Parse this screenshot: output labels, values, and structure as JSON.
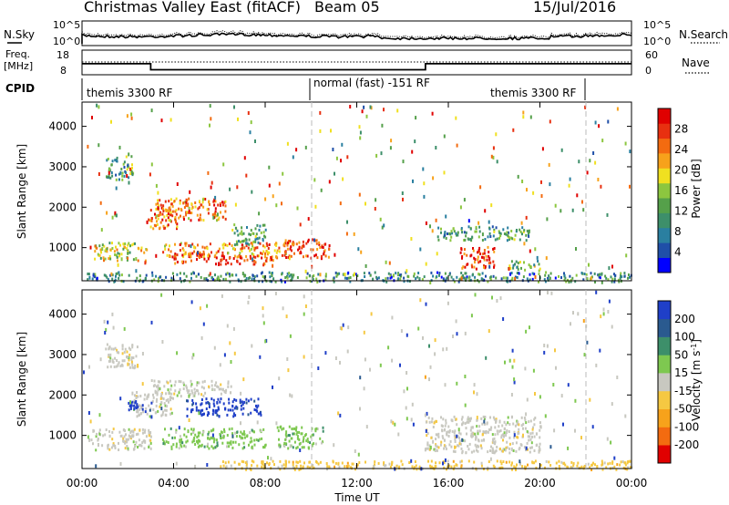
{
  "header": {
    "title": "Christmas Valley East (fitACF)",
    "beam": "Beam 05",
    "date": "15/Jul/2016"
  },
  "top_panel": {
    "left_label": "N.Sky",
    "right_label": "N.Search",
    "left_ticks": [
      "10^5",
      "10^0"
    ],
    "right_ticks": [
      "10^5",
      "10^0"
    ]
  },
  "freq_panel": {
    "left_label_1": "Freq.",
    "left_label_2": "[MHz]",
    "right_label": "Nave",
    "left_ticks": [
      "18",
      "8"
    ],
    "right_ticks": [
      "60",
      "0"
    ]
  },
  "cpid": {
    "label": "CPID",
    "segments": [
      "themis 3300 RF",
      "normal (fast) -151 RF",
      "themis 3300 RF"
    ]
  },
  "chart_data": [
    {
      "type": "heatmap",
      "name": "power",
      "ylabel": "Slant Range [km]",
      "yticks": [
        "1000",
        "2000",
        "3000",
        "4000"
      ],
      "ylim": [
        180,
        4600
      ],
      "xlim": [
        0,
        24
      ],
      "colorbar_label": "Power [dB]",
      "colorbar_ticks": [
        "4",
        "8",
        "12",
        "16",
        "20",
        "24",
        "28"
      ],
      "colorbar_colors": [
        "#0000ff",
        "#1f4fa8",
        "#2a7fa0",
        "#3d8f6a",
        "#55a04a",
        "#8cc63f",
        "#f0e020",
        "#f7a21b",
        "#f36b10",
        "#e83010",
        "#e00000"
      ],
      "regions": [
        {
          "t0": 0.5,
          "t1": 2.8,
          "r0": 700,
          "r1": 1150,
          "level": 0.55
        },
        {
          "t0": 2.8,
          "t1": 4.2,
          "r0": 1500,
          "r1": 2000,
          "level": 0.8
        },
        {
          "t0": 3.2,
          "t1": 6.3,
          "r0": 1700,
          "r1": 2250,
          "level": 0.75
        },
        {
          "t0": 3.5,
          "t1": 9.0,
          "r0": 800,
          "r1": 1150,
          "level": 0.72
        },
        {
          "t0": 4.0,
          "t1": 8.5,
          "r0": 600,
          "r1": 850,
          "level": 0.85
        },
        {
          "t0": 8.8,
          "t1": 10.8,
          "r0": 750,
          "r1": 1250,
          "level": 0.9
        },
        {
          "t0": 6.5,
          "t1": 8.0,
          "r0": 1100,
          "r1": 1600,
          "level": 0.4
        },
        {
          "t0": 15.5,
          "t1": 19.5,
          "r0": 1200,
          "r1": 1550,
          "level": 0.35
        },
        {
          "t0": 16.5,
          "t1": 18.0,
          "r0": 500,
          "r1": 1050,
          "level": 0.88
        },
        {
          "t0": 18.5,
          "t1": 20.0,
          "r0": 450,
          "r1": 700,
          "level": 0.45
        },
        {
          "t0": 1.0,
          "t1": 2.2,
          "r0": 2700,
          "r1": 3300,
          "level": 0.35
        },
        {
          "t0": 0.2,
          "t1": 24.0,
          "r0": 180,
          "r1": 420,
          "level": 0.3
        }
      ]
    },
    {
      "type": "heatmap",
      "name": "velocity",
      "ylabel": "Slant Range [km]",
      "yticks": [
        "1000",
        "2000",
        "3000",
        "4000"
      ],
      "ylim": [
        180,
        4600
      ],
      "xlim": [
        0,
        24
      ],
      "colorbar_label": "Velocity [m s-1]",
      "colorbar_ticks": [
        "200",
        "100",
        "50",
        "15",
        "-15",
        "-50",
        "-100",
        "-200"
      ],
      "colorbar_colors": [
        "#1f3fc8",
        "#2a5a8f",
        "#3d8f6a",
        "#7ec850",
        "#c8c8c0",
        "#f5c842",
        "#f7a21b",
        "#f36b10",
        "#e00000"
      ],
      "regions": [
        {
          "t0": 0.3,
          "t1": 3.0,
          "r0": 650,
          "r1": 1200,
          "cls": 4
        },
        {
          "t0": 2.2,
          "t1": 4.0,
          "r0": 1500,
          "r1": 2100,
          "cls": 4
        },
        {
          "t0": 2.0,
          "t1": 3.0,
          "r0": 1600,
          "r1": 1900,
          "cls": 0
        },
        {
          "t0": 4.5,
          "t1": 7.8,
          "r0": 1500,
          "r1": 1950,
          "cls": 0
        },
        {
          "t0": 3.5,
          "t1": 8.0,
          "r0": 700,
          "r1": 1200,
          "cls": 3
        },
        {
          "t0": 8.5,
          "t1": 10.5,
          "r0": 700,
          "r1": 1250,
          "cls": 3
        },
        {
          "t0": 15.0,
          "t1": 20.0,
          "r0": 600,
          "r1": 1500,
          "cls": 4
        },
        {
          "t0": 1.0,
          "t1": 2.5,
          "r0": 2700,
          "r1": 3300,
          "cls": 4
        },
        {
          "t0": 3.0,
          "t1": 6.5,
          "r0": 2000,
          "r1": 2400,
          "cls": 4
        },
        {
          "t0": 6.0,
          "t1": 24.0,
          "r0": 180,
          "r1": 400,
          "cls": 5
        }
      ]
    }
  ],
  "x_axis": {
    "label": "Time UT",
    "ticks": [
      "00:00",
      "04:00",
      "08:00",
      "12:00",
      "16:00",
      "20:00",
      "00:00"
    ]
  }
}
